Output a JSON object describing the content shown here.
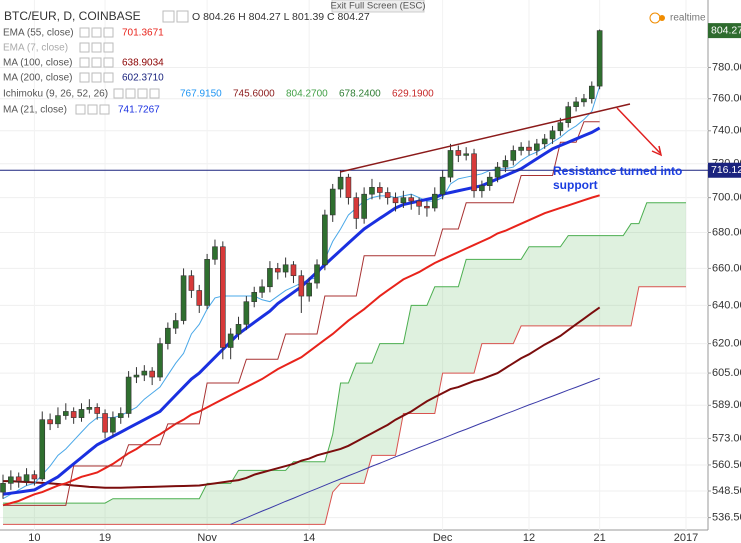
{
  "chart_data": {
    "type": "candlestick",
    "symbol": "BTC/EUR, D, COINBASE",
    "ohlc_text": "O 804.26 H 804.27 L 801.39 C 804.27",
    "exit_text": "Exit Full Screen (ESC)",
    "realtime_text": "realtime",
    "annotation": "Resistance turned into support",
    "legend": [
      {
        "label": "EMA (55, close)",
        "value": "701.3671"
      },
      {
        "label": "EMA (7, close)"
      },
      {
        "label": "MA (100, close)",
        "value": "638.9034"
      },
      {
        "label": "MA (200, close)",
        "value": "602.3710"
      },
      {
        "label": "Ichimoku (9, 26, 52, 26)",
        "values": [
          "767.9150",
          "745.6000",
          "804.2700",
          "678.2400",
          "629.1900"
        ]
      },
      {
        "label": "MA (21, close)",
        "value": "741.7267"
      }
    ],
    "log_scale": true,
    "grid": true,
    "ylim": [
      531,
      825
    ],
    "yticks": [
      {
        "value": 780,
        "label": "780.00"
      },
      {
        "value": 760,
        "label": "760.00"
      },
      {
        "value": 740,
        "label": "740.00"
      },
      {
        "value": 720,
        "label": "720.00"
      },
      {
        "value": 700,
        "label": "700.00"
      },
      {
        "value": 680,
        "label": "680.00"
      },
      {
        "value": 660,
        "label": "660.00"
      },
      {
        "value": 640,
        "label": "640.00"
      },
      {
        "value": 620,
        "label": "620.00"
      },
      {
        "value": 605,
        "label": "605.00"
      },
      {
        "value": 589,
        "label": "589.00"
      },
      {
        "value": 573,
        "label": "573.00"
      },
      {
        "value": 560.5,
        "label": "560.50"
      },
      {
        "value": 548.5,
        "label": "548.50"
      },
      {
        "value": 536.5,
        "label": "536.50"
      }
    ],
    "last_price": 804.27,
    "last_price_color": "#2e6b2e",
    "price_line": 716.12,
    "price_line_color": "#1a237e",
    "up_color": "#2f6f2f",
    "down_color": "#d73a3a",
    "categories": [
      null,
      null,
      null,
      null,
      "10",
      null,
      null,
      null,
      null,
      null,
      null,
      null,
      null,
      "19",
      null,
      null,
      null,
      null,
      null,
      null,
      null,
      null,
      null,
      null,
      null,
      null,
      "Nov",
      null,
      null,
      null,
      null,
      null,
      null,
      null,
      null,
      null,
      null,
      null,
      null,
      "14",
      null,
      null,
      null,
      null,
      null,
      null,
      null,
      null,
      null,
      null,
      null,
      null,
      null,
      null,
      null,
      null,
      "Dec",
      null,
      null,
      null,
      null,
      null,
      null,
      null,
      null,
      null,
      null,
      "12",
      null,
      null,
      null,
      null,
      null,
      null,
      null,
      null,
      "21",
      null,
      null,
      null,
      null,
      null,
      null,
      null,
      null,
      null,
      null,
      "2017"
    ],
    "open": [
      548,
      552,
      555,
      553,
      556,
      554,
      582,
      580,
      584,
      586,
      583,
      587,
      588,
      585,
      576,
      583,
      585,
      603,
      604,
      606,
      603,
      620,
      628,
      632,
      656,
      648,
      640,
      665,
      672,
      618,
      625,
      630,
      642,
      647,
      650,
      660,
      658,
      662,
      656,
      645,
      652,
      662,
      690,
      705,
      712,
      700,
      688,
      702,
      706,
      703,
      700,
      697,
      700,
      698,
      695,
      694,
      702,
      712,
      728,
      725,
      726,
      704,
      707,
      712,
      718,
      722,
      728,
      730,
      728,
      732,
      735,
      740,
      745,
      755,
      758,
      760,
      768,
      null,
      null,
      null,
      null,
      null,
      null,
      null,
      null,
      null,
      null,
      null
    ],
    "high": [
      556,
      558,
      557,
      559,
      558,
      586,
      585,
      588,
      590,
      588,
      590,
      592,
      590,
      587,
      586,
      588,
      606,
      608,
      609,
      608,
      623,
      631,
      636,
      660,
      659,
      651,
      668,
      676,
      675,
      628,
      634,
      645,
      650,
      654,
      664,
      663,
      666,
      664,
      659,
      655,
      665,
      693,
      708,
      716,
      714,
      703,
      706,
      711,
      709,
      706,
      703,
      704,
      702,
      700,
      698,
      706,
      716,
      732,
      731,
      730,
      729,
      710,
      715,
      721,
      725,
      731,
      733,
      734,
      735,
      738,
      743,
      748,
      758,
      761,
      763,
      771,
      805,
      null,
      null,
      null,
      null,
      null,
      null,
      null,
      null,
      null,
      null,
      null
    ],
    "low": [
      545,
      549,
      550,
      551,
      551,
      553,
      577,
      578,
      582,
      580,
      581,
      585,
      582,
      573,
      574,
      580,
      583,
      600,
      601,
      599,
      601,
      617,
      625,
      630,
      644,
      636,
      638,
      662,
      612,
      612,
      622,
      627,
      639,
      644,
      647,
      654,
      655,
      652,
      636,
      642,
      649,
      659,
      686,
      700,
      696,
      682,
      685,
      699,
      699,
      696,
      692,
      694,
      693,
      690,
      689,
      692,
      699,
      709,
      721,
      722,
      700,
      700,
      704,
      709,
      715,
      719,
      725,
      725,
      725,
      729,
      732,
      737,
      742,
      752,
      755,
      757,
      766,
      null,
      null,
      null,
      null,
      null,
      null,
      null,
      null,
      null,
      null,
      null
    ],
    "close": [
      552,
      555,
      553,
      556,
      554,
      582,
      580,
      584,
      586,
      583,
      587,
      588,
      585,
      576,
      583,
      585,
      603,
      604,
      606,
      603,
      620,
      628,
      632,
      656,
      648,
      640,
      665,
      672,
      618,
      625,
      630,
      642,
      647,
      650,
      660,
      658,
      662,
      656,
      645,
      652,
      662,
      690,
      705,
      712,
      700,
      688,
      702,
      706,
      703,
      700,
      697,
      700,
      698,
      695,
      694,
      702,
      712,
      728,
      725,
      726,
      704,
      707,
      712,
      718,
      722,
      728,
      730,
      728,
      732,
      735,
      740,
      745,
      755,
      758,
      760,
      768,
      804.27,
      null,
      null,
      null,
      null,
      null,
      null,
      null,
      null,
      null,
      null,
      null
    ],
    "series": [
      {
        "color": "#4caf50",
        "line_width": 1,
        "fill": "rgba(76,175,80,0.18)",
        "values": [
          543,
          543,
          543,
          543,
          543,
          543,
          543,
          543,
          543,
          543,
          543,
          543,
          543,
          543,
          545,
          545,
          545,
          545,
          545,
          545,
          545,
          545,
          545,
          545,
          545,
          545,
          552,
          552,
          552,
          552,
          558,
          558,
          558,
          558,
          558,
          558,
          558,
          562,
          562,
          562,
          562,
          562,
          575,
          600,
          600,
          610,
          610,
          610,
          620,
          620,
          620,
          620,
          640,
          640,
          640,
          650,
          650,
          650,
          650,
          665,
          665,
          665,
          665,
          665,
          665,
          665,
          665,
          672,
          672,
          672,
          672,
          672,
          678.24,
          678.24,
          678.24,
          678.24,
          678.24,
          678.24,
          678.24,
          678.24,
          685,
          685,
          697,
          697,
          697,
          697,
          697,
          697
        ]
      },
      {
        "color": "#d9534f",
        "line_width": 1,
        "values": [
          533.5,
          533.5,
          533.5,
          533.5,
          533.5,
          533.5,
          533.5,
          533.5,
          533.5,
          533.5,
          533.5,
          533.5,
          533.5,
          533.5,
          533.5,
          533.5,
          533.5,
          533.5,
          533.5,
          533.5,
          533.5,
          533.5,
          533.5,
          533.5,
          533.5,
          533.5,
          533.5,
          533.5,
          533.5,
          533.5,
          533.5,
          533.5,
          533.5,
          533.5,
          533.5,
          533.5,
          533.5,
          533.5,
          533.5,
          533.5,
          533.5,
          533.5,
          548,
          552,
          552,
          552,
          552,
          565,
          565,
          565,
          565,
          585,
          585,
          585,
          585,
          585,
          605,
          605,
          605,
          605,
          605,
          620,
          620,
          620,
          620,
          620,
          629.19,
          629.19,
          629.19,
          629.19,
          629.19,
          629.19,
          629.19,
          629.19,
          629.19,
          629.19,
          629.19,
          629.19,
          629.19,
          629.19,
          629.19,
          650,
          650,
          650,
          650,
          650,
          650,
          650
        ]
      },
      {
        "color": "#3b3ba8",
        "line_width": 1,
        "values": [
          null,
          null,
          null,
          null,
          null,
          null,
          null,
          null,
          null,
          null,
          null,
          null,
          null,
          null,
          null,
          null,
          null,
          null,
          null,
          null,
          null,
          null,
          null,
          null,
          null,
          null,
          null,
          null,
          null,
          533.5,
          535,
          536.4,
          537.9,
          539.4,
          540.8,
          542.3,
          543.8,
          545.2,
          546.7,
          548.2,
          549.6,
          551.1,
          552.6,
          554,
          555.5,
          556.9,
          558.4,
          559.9,
          561.3,
          562.8,
          564.3,
          565.7,
          567.2,
          568.7,
          570.1,
          571.6,
          573,
          574.5,
          576,
          577.4,
          578.9,
          580.4,
          581.8,
          583.3,
          584.8,
          586.2,
          587.7,
          589.2,
          590.6,
          592.1,
          593.5,
          595,
          596.5,
          597.9,
          599.4,
          600.9,
          602.371,
          null,
          null,
          null,
          null,
          null,
          null,
          null,
          null,
          null,
          null,
          null
        ]
      },
      {
        "color": "#7b0d0d",
        "line_width": 2,
        "values": [
          553,
          553,
          552.8,
          552.6,
          552.4,
          552.2,
          552,
          551.7,
          551.4,
          551,
          550.7,
          550.4,
          550.2,
          550,
          550,
          550,
          550.1,
          550.2,
          550.3,
          550.4,
          550.5,
          550.6,
          550.7,
          550.8,
          550.9,
          551,
          551.5,
          552,
          552.5,
          553,
          553.5,
          554.5,
          556,
          557,
          558,
          559,
          560,
          561,
          562.5,
          563.5,
          565,
          566,
          567,
          568,
          569.5,
          571.5,
          573.5,
          575.5,
          577.5,
          579.5,
          582,
          584,
          586,
          588.5,
          591,
          593,
          595,
          597,
          598,
          599.5,
          601,
          602,
          603.5,
          605,
          607.5,
          610,
          612.5,
          614.5,
          617,
          619.5,
          621.7,
          624,
          627,
          630,
          633,
          636,
          638.9034,
          null,
          null,
          null,
          null,
          null,
          null,
          null,
          null,
          null,
          null,
          null
        ]
      },
      {
        "color": "#e8231b",
        "line_width": 2,
        "values": [
          542,
          543,
          544,
          545.5,
          547,
          548,
          549.5,
          551,
          552,
          553.5,
          555,
          556,
          557,
          559,
          561,
          563.5,
          566,
          568,
          570.5,
          573,
          575,
          577.5,
          580,
          582,
          584.5,
          586,
          588,
          590,
          592,
          594,
          596,
          598,
          600,
          602,
          604.5,
          607,
          609,
          611,
          613,
          616,
          619,
          622,
          625,
          628.5,
          632,
          635,
          638,
          641.5,
          645,
          648,
          651,
          654,
          656,
          658,
          660.5,
          663,
          665,
          667,
          669,
          671,
          673,
          675,
          677,
          679.5,
          681,
          683,
          685,
          687,
          689,
          691,
          692.5,
          694,
          695.5,
          697,
          698.5,
          700,
          701.3671,
          null,
          null,
          null,
          null,
          null,
          null,
          null,
          null,
          null,
          null,
          null
        ]
      },
      {
        "color": "#a83232",
        "line_width": 1,
        "values": [
          542,
          542,
          542,
          542,
          542,
          542,
          542,
          542,
          542,
          560,
          560,
          560,
          560,
          560,
          560,
          560,
          570,
          570,
          570,
          570,
          570,
          580,
          580,
          580,
          580,
          580,
          600,
          600,
          600,
          600,
          600,
          612,
          612,
          612,
          612,
          612,
          625,
          625,
          625,
          625,
          625,
          645,
          645,
          645,
          645,
          645,
          667,
          667,
          667,
          667,
          667,
          667,
          667,
          667,
          667,
          667,
          682,
          682,
          682,
          697,
          697,
          697,
          697,
          697,
          697,
          697,
          713,
          713,
          713,
          713,
          713,
          733,
          733,
          733,
          745.6,
          745.6,
          745.6,
          null,
          null,
          null,
          null,
          null,
          null,
          null,
          null,
          null,
          null,
          null
        ]
      },
      {
        "color": "#4aa8e8",
        "line_width": 1,
        "values": [
          545,
          547,
          549,
          551,
          552,
          556,
          560,
          565,
          568,
          572,
          576,
          580,
          583,
          583,
          583,
          584,
          586,
          588,
          592,
          595,
          598,
          604,
          610,
          615,
          625,
          630,
          638,
          644,
          645,
          645,
          645,
          645,
          645,
          643,
          642,
          645,
          648,
          650,
          652,
          654,
          655,
          665,
          675,
          682,
          690,
          694,
          698,
          700,
          701,
          701,
          700,
          701,
          702,
          700,
          698,
          698,
          700,
          708,
          711,
          712,
          713,
          714,
          716,
          717,
          717,
          718,
          722,
          725,
          727,
          730,
          733,
          736,
          740,
          743,
          747,
          752,
          767.915,
          null,
          null,
          null,
          null,
          null,
          null,
          null,
          null,
          null,
          null,
          null
        ]
      },
      {
        "color": "#1a30e0",
        "line_width": 3,
        "values": [
          547,
          547.5,
          548,
          548.5,
          549,
          551,
          553,
          555,
          558,
          561,
          564,
          567,
          570,
          572,
          574,
          576,
          578,
          580,
          582,
          584,
          586,
          590,
          594,
          598,
          602,
          605,
          609,
          613,
          617,
          621,
          625,
          628,
          631,
          634,
          637,
          641,
          644,
          647,
          650,
          654,
          658,
          662,
          666,
          670,
          674,
          678,
          682,
          685,
          688,
          691,
          694,
          696,
          697,
          698,
          699,
          700,
          702,
          703,
          704,
          705,
          706,
          707,
          709,
          711,
          713,
          715,
          717,
          720,
          723,
          726,
          729,
          731,
          733,
          735,
          737,
          739,
          741.7267,
          null,
          null,
          null,
          null,
          null,
          null,
          null,
          null,
          null,
          null,
          null
        ]
      }
    ]
  }
}
